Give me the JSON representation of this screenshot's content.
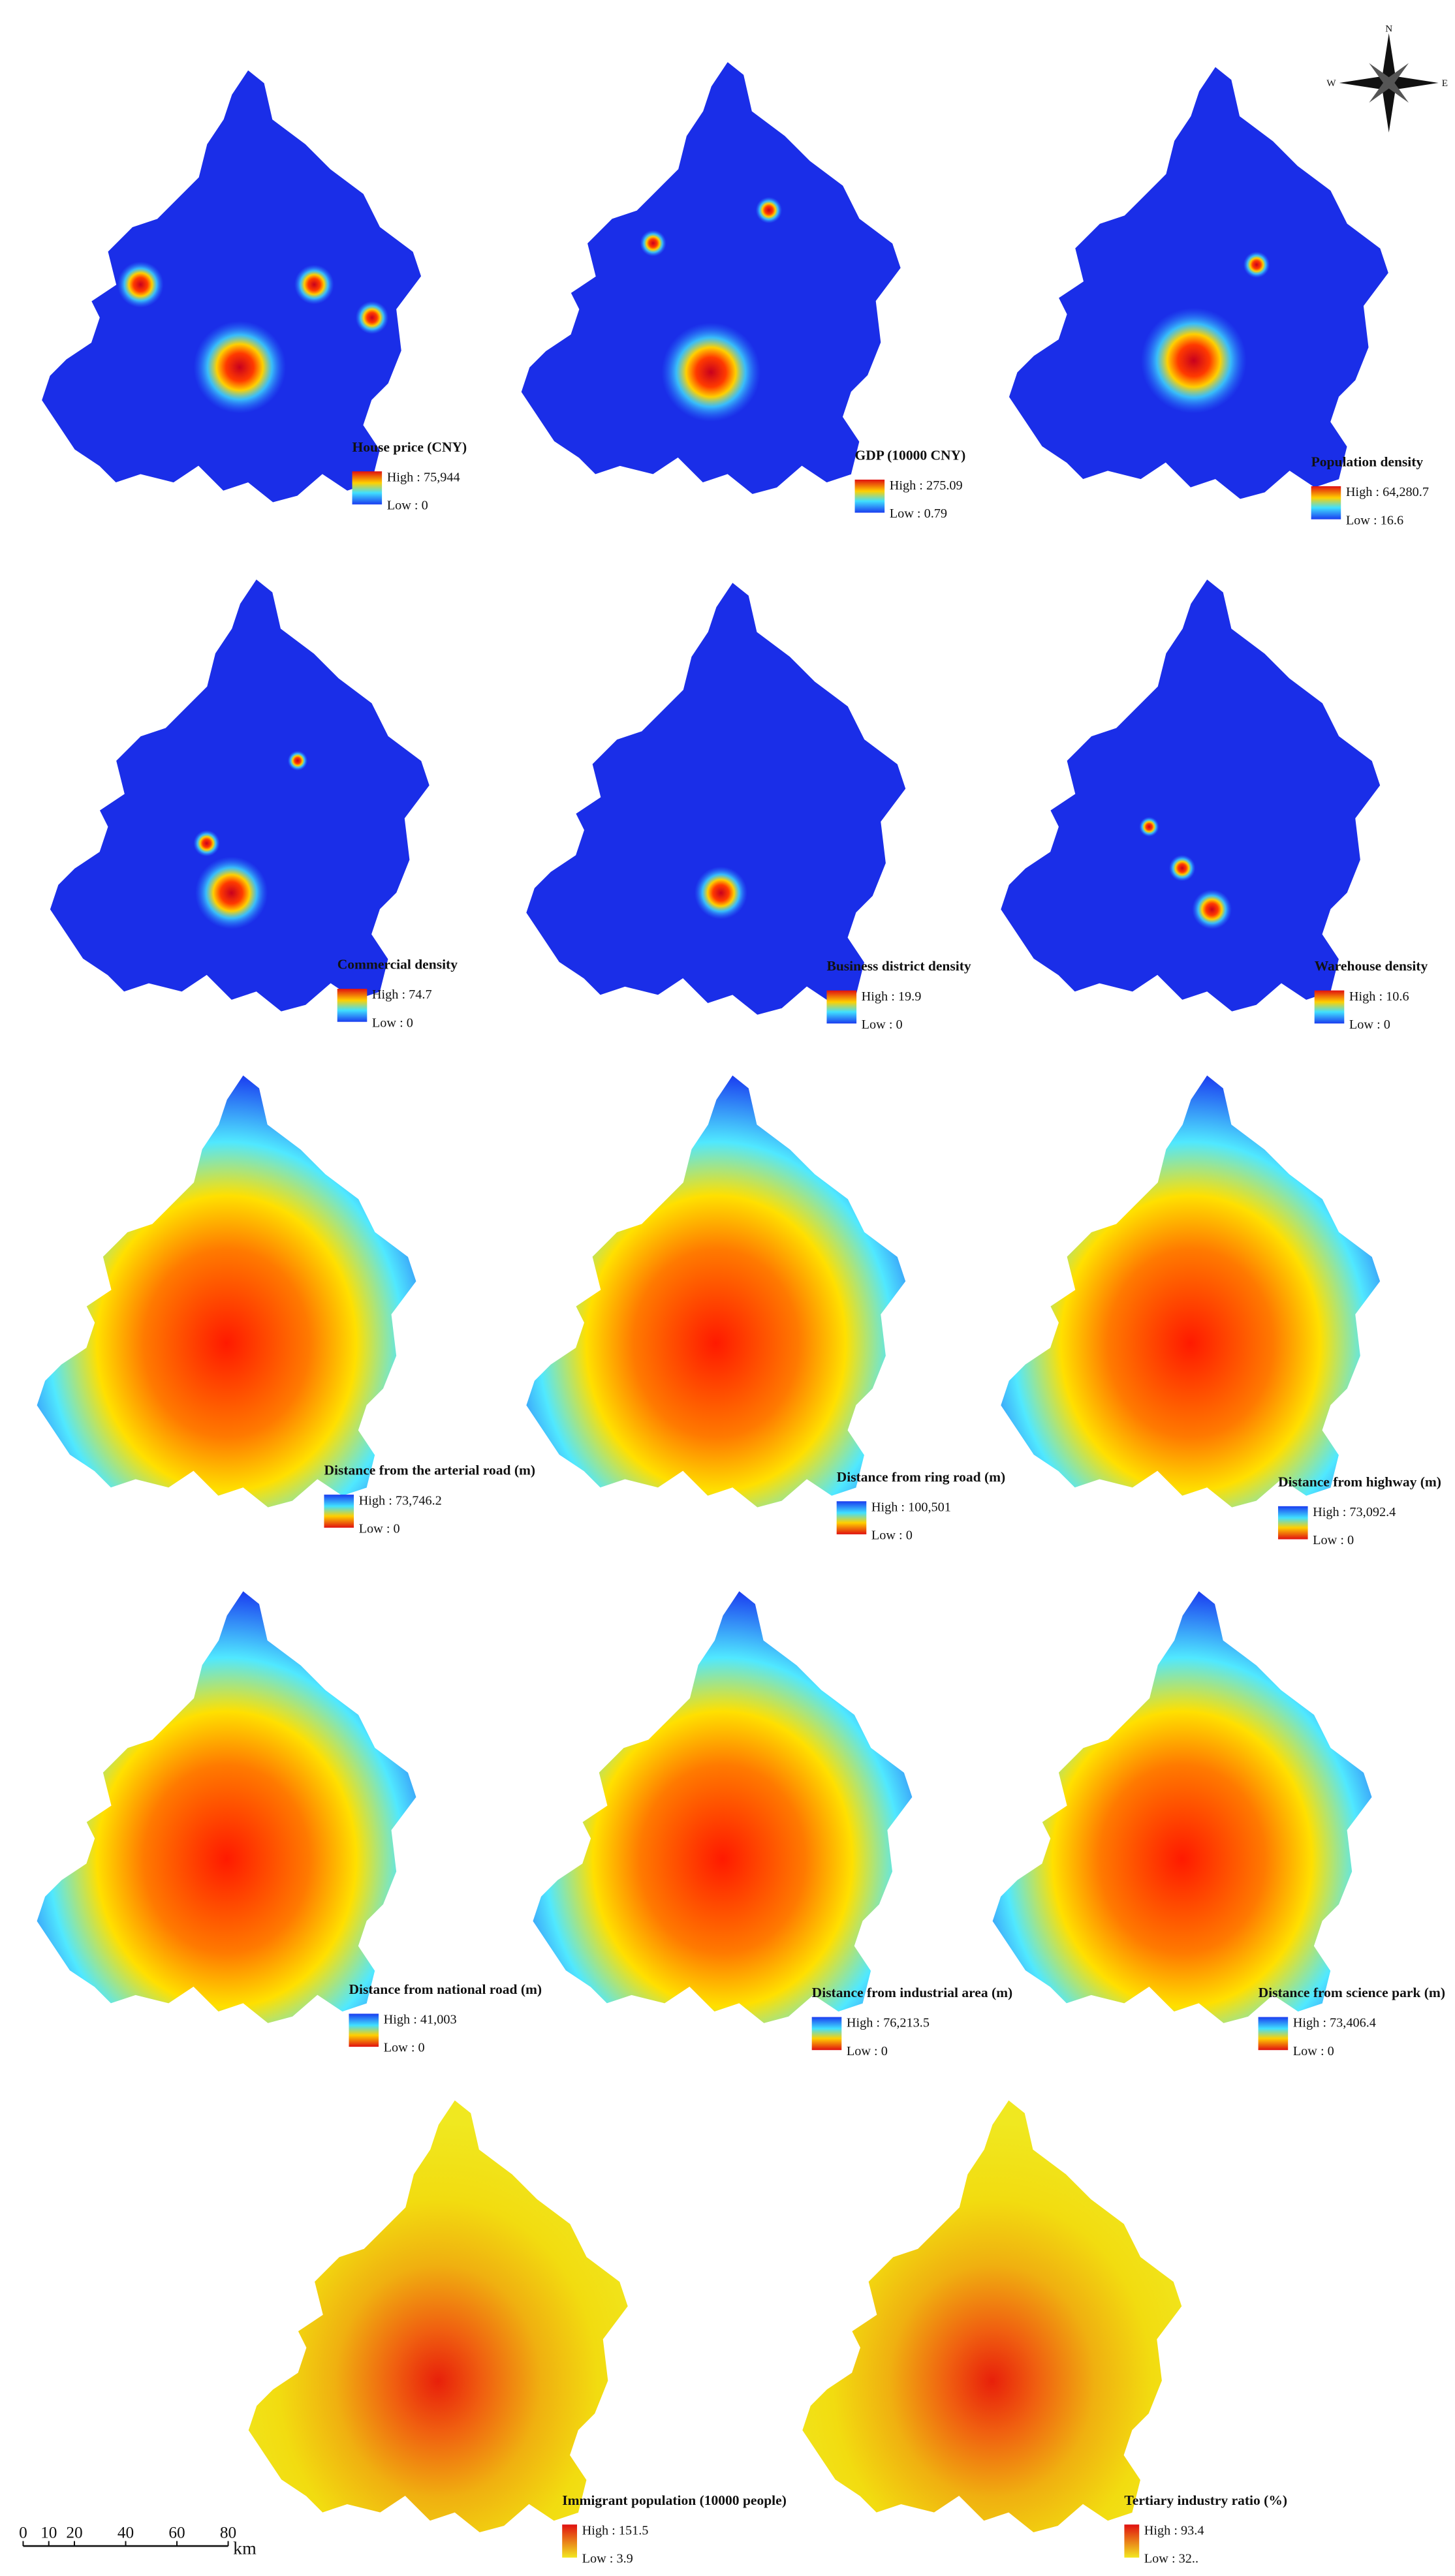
{
  "panels": [
    {
      "title": "House price (CNY)",
      "high": "High : 75,944",
      "low": "Low : 0"
    },
    {
      "title": "GDP (10000 CNY)",
      "high": "High : 275.09",
      "low": "Low : 0.79"
    },
    {
      "title": "Population density",
      "high": "High : 64,280.7",
      "low": "Low : 16.6"
    },
    {
      "title": "Commercial density",
      "high": "High : 74.7",
      "low": "Low : 0"
    },
    {
      "title": "Business district density",
      "high": "High : 19.9",
      "low": "Low : 0"
    },
    {
      "title": "Warehouse density",
      "high": "High : 10.6",
      "low": "Low : 0"
    },
    {
      "title": "Distance from the arterial road (m)",
      "high": "High : 73,746.2",
      "low": "Low : 0"
    },
    {
      "title": "Distance from ring road (m)",
      "high": "High : 100,501",
      "low": "Low : 0"
    },
    {
      "title": "Distance from highway (m)",
      "high": "High : 73,092.4",
      "low": "Low : 0"
    },
    {
      "title": "Distance from national road (m)",
      "high": "High : 41,003",
      "low": "Low : 0"
    },
    {
      "title": "Distance from industrial area (m)",
      "high": "High : 76,213.5",
      "low": "Low : 0"
    },
    {
      "title": "Distance from science park (m)",
      "high": "High : 73,406.4",
      "low": "Low : 0"
    },
    {
      "title": "Immigrant population (10000 people)",
      "high": "High : 151.5",
      "low": "Low : 3.9"
    },
    {
      "title": "Tertiary industry ratio (%)",
      "high": "High : 93.4",
      "low": "Low : 32.."
    }
  ],
  "compass": {
    "north": "N",
    "west": "W",
    "east": "E"
  },
  "scale_bar": {
    "ticks": [
      0,
      10,
      20,
      40,
      60,
      80
    ],
    "unit": "km"
  }
}
